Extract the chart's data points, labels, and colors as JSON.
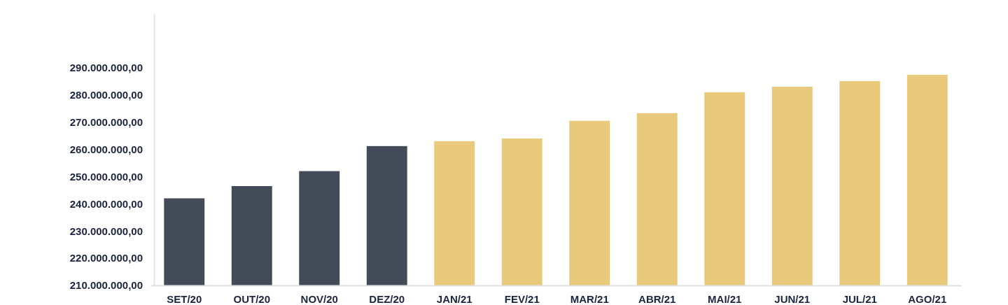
{
  "chart_data": {
    "type": "bar",
    "categories": [
      "SET/20",
      "OUT/20",
      "NOV/20",
      "DEZ/20",
      "JAN/21",
      "FEV/21",
      "MAR/21",
      "ABR/21",
      "MAI/21",
      "JUN/21",
      "JUL/21",
      "AGO/21"
    ],
    "values": [
      242000000,
      246500000,
      252000000,
      261200000,
      263000000,
      264000000,
      270500000,
      273300000,
      281000000,
      283000000,
      285100000,
      287400000
    ],
    "colors": [
      "#444b58",
      "#444b58",
      "#444b58",
      "#444b58",
      "#e9c97c",
      "#e9c97c",
      "#e9c97c",
      "#e9c97c",
      "#e9c97c",
      "#e9c97c",
      "#e9c97c",
      "#e9c97c"
    ],
    "ylim": [
      210000000,
      310000000
    ],
    "yticks": [
      {
        "value": 210000000,
        "label": "210.000.000,00"
      },
      {
        "value": 220000000,
        "label": "220.000.000,00"
      },
      {
        "value": 230000000,
        "label": "230.000.000,00"
      },
      {
        "value": 240000000,
        "label": "240.000.000,00"
      },
      {
        "value": 250000000,
        "label": "250.000.000,00"
      },
      {
        "value": 260000000,
        "label": "260.000.000,00"
      },
      {
        "value": 270000000,
        "label": "270.000.000,00"
      },
      {
        "value": 280000000,
        "label": "280.000.000,00"
      },
      {
        "value": 290000000,
        "label": "290.000.000,00"
      }
    ],
    "grid": false
  }
}
